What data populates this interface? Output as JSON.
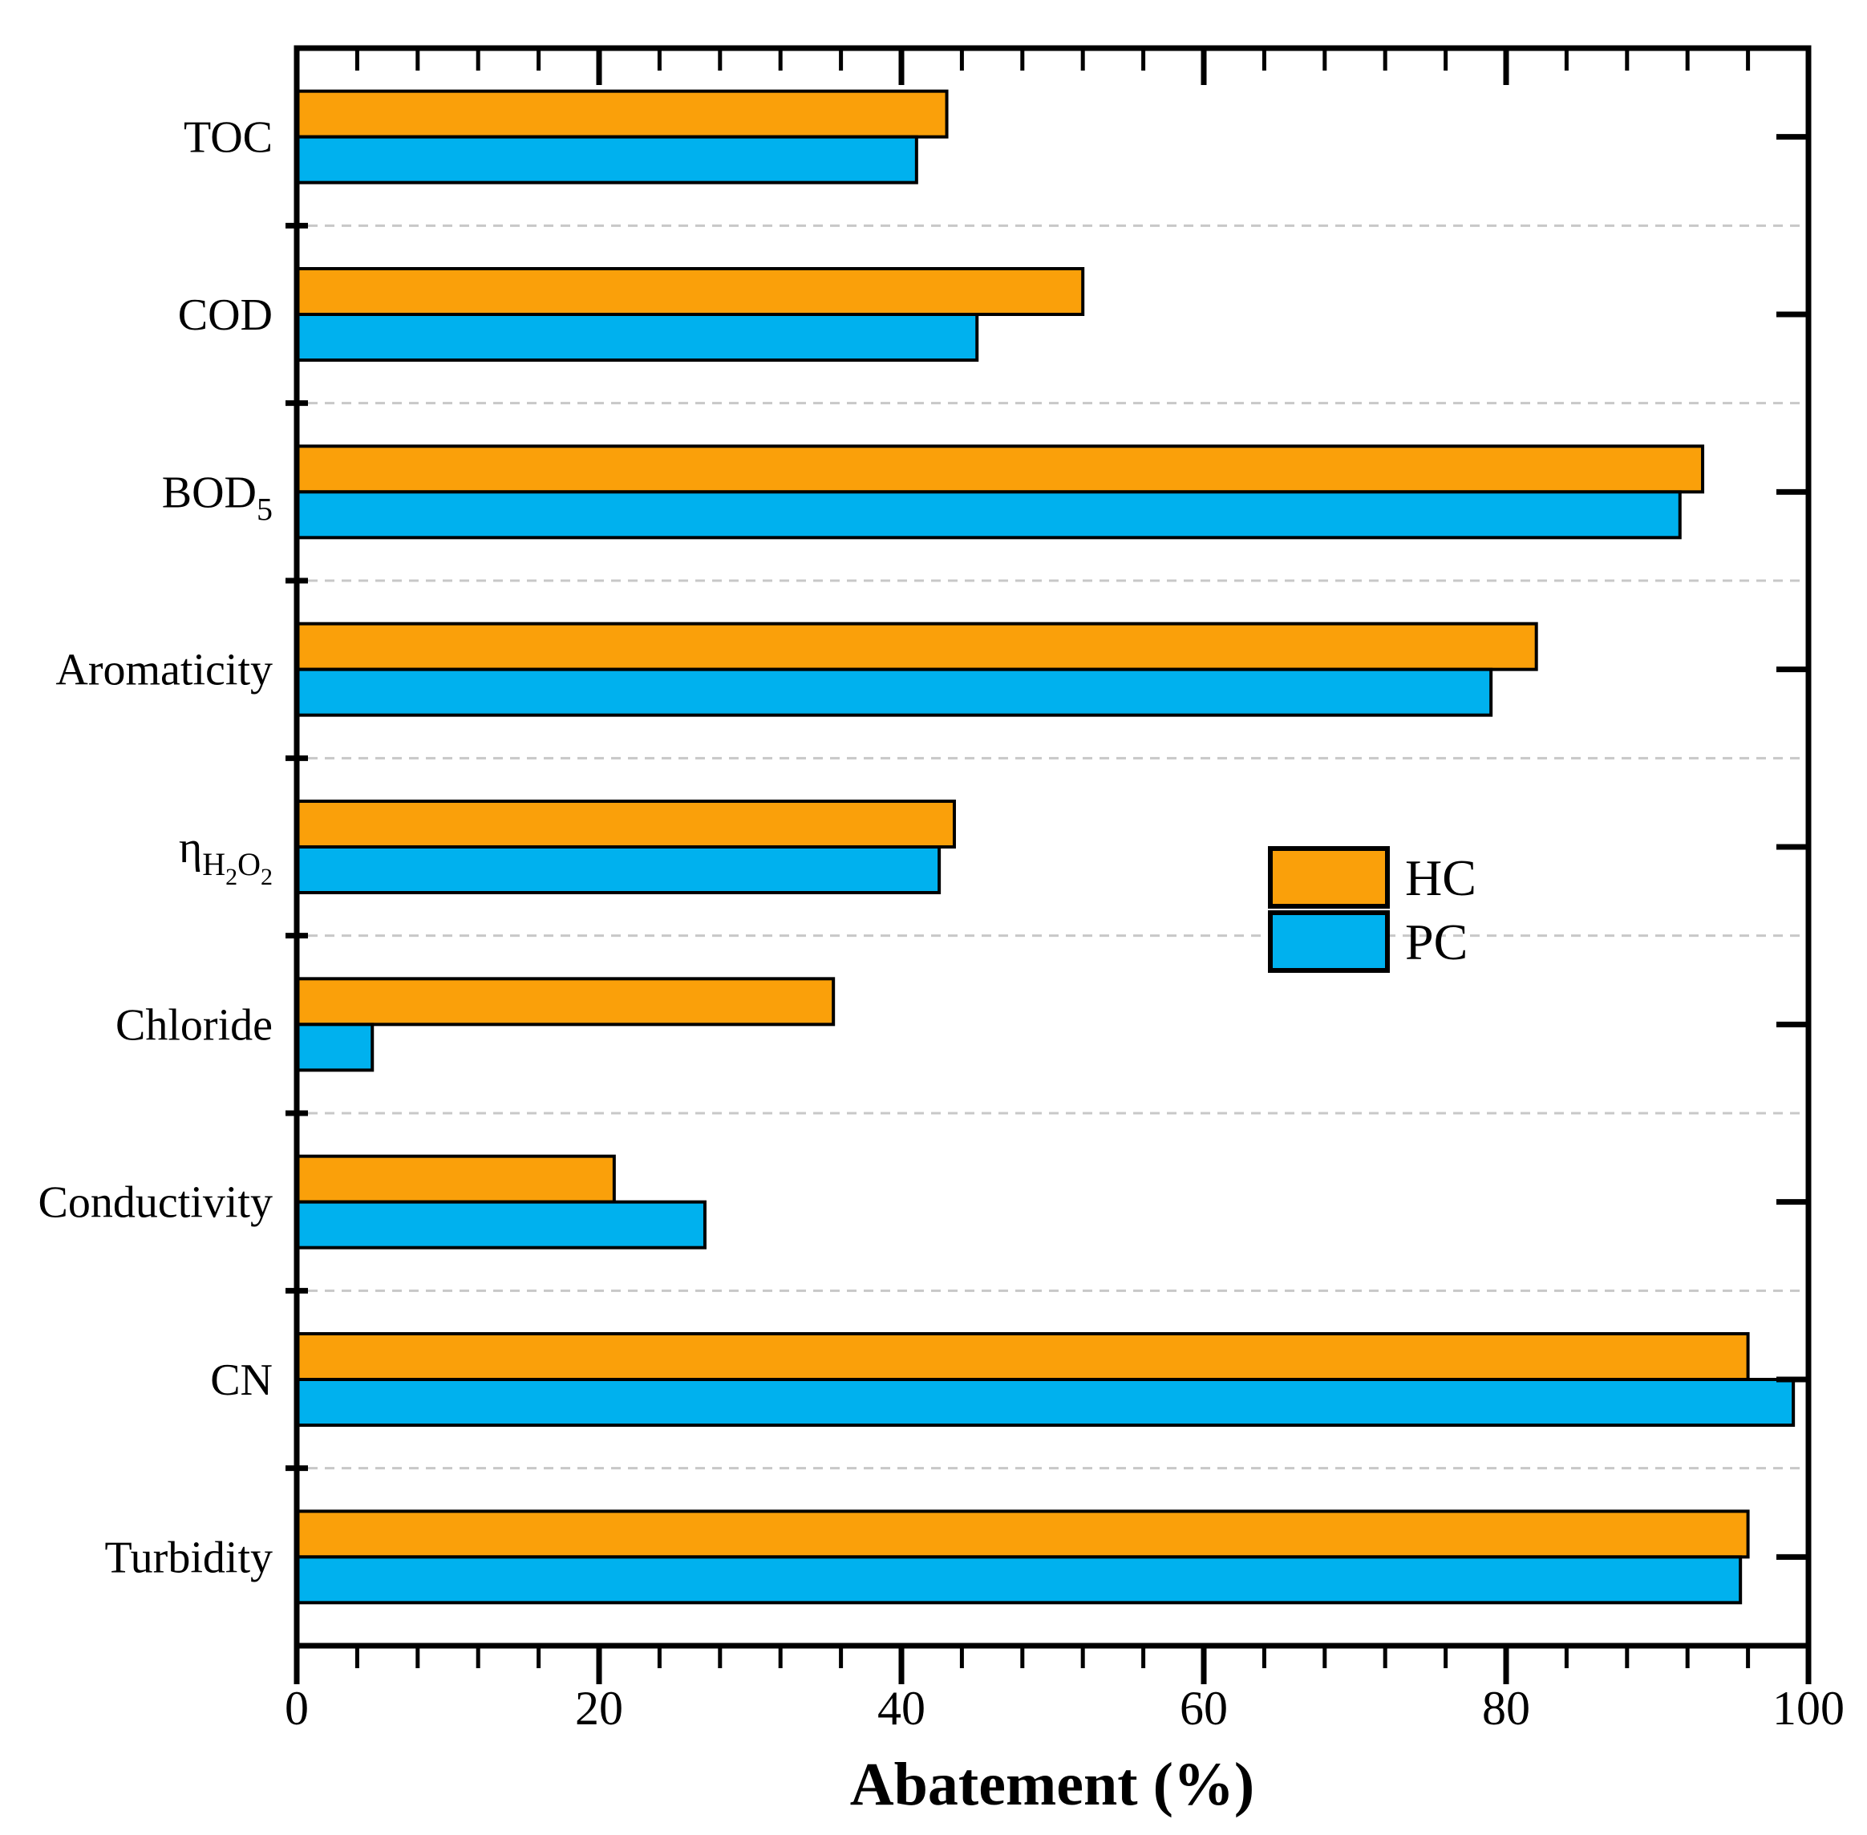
{
  "figure": {
    "background": "#FFFFFF"
  },
  "chart_data": {
    "type": "bar",
    "orientation": "horizontal",
    "title": "",
    "xlabel": "Abatement (%)",
    "ylabel": "",
    "xlim": [
      0,
      100
    ],
    "x_major_ticks": [
      0,
      20,
      40,
      60,
      80,
      100
    ],
    "x_minor_tick_step": 4,
    "grid": "horizontal dashed separators between categories",
    "legend_position": "center-right inside plot",
    "categories": [
      {
        "label": "TOC",
        "parts": [
          [
            "TOC",
            0
          ]
        ]
      },
      {
        "label": "COD",
        "parts": [
          [
            "COD",
            0
          ]
        ]
      },
      {
        "label": "BOD5",
        "parts": [
          [
            "BOD",
            0
          ],
          [
            "5",
            1
          ]
        ]
      },
      {
        "label": "Aromaticity",
        "parts": [
          [
            "Aromaticity",
            0
          ]
        ]
      },
      {
        "label": "ηH2O2",
        "parts": [
          [
            "η",
            0
          ],
          [
            "H",
            1
          ],
          [
            "2",
            2
          ],
          [
            "O",
            1
          ],
          [
            "2",
            2
          ]
        ]
      },
      {
        "label": "Chloride",
        "parts": [
          [
            "Chloride",
            0
          ]
        ]
      },
      {
        "label": "Conductivity",
        "parts": [
          [
            "Conductivity",
            0
          ]
        ]
      },
      {
        "label": "CN",
        "parts": [
          [
            "CN",
            0
          ]
        ]
      },
      {
        "label": "Turbidity",
        "parts": [
          [
            "Turbidity",
            0
          ]
        ]
      }
    ],
    "series": [
      {
        "name": "HC",
        "color": "#FAA00A",
        "values": [
          43,
          52,
          93,
          82,
          43.5,
          35.5,
          21,
          96,
          96
        ]
      },
      {
        "name": "PC",
        "color": "#00B1EE",
        "values": [
          41,
          45,
          91.5,
          79,
          42.5,
          5,
          27,
          99,
          95.5
        ]
      }
    ]
  },
  "colors": {
    "axis": "#000000",
    "bar_border": "#000000",
    "gridline": "#C8C8C8",
    "text": "#000000"
  }
}
